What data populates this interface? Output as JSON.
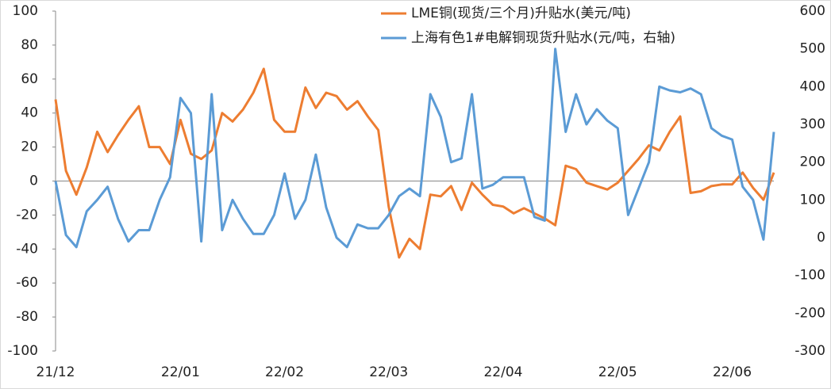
{
  "chart_data": {
    "type": "line",
    "categories": [
      "21/12",
      null,
      null,
      null,
      null,
      null,
      null,
      null,
      null,
      null,
      null,
      null,
      "22/01",
      null,
      null,
      null,
      null,
      null,
      null,
      null,
      null,
      null,
      "22/02",
      null,
      null,
      null,
      null,
      null,
      null,
      null,
      null,
      null,
      "22/03",
      null,
      null,
      null,
      null,
      null,
      null,
      null,
      null,
      null,
      null,
      "22/04",
      null,
      null,
      null,
      null,
      null,
      null,
      null,
      null,
      null,
      null,
      "22/05",
      null,
      null,
      null,
      null,
      null,
      null,
      null,
      null,
      null,
      null,
      "22/06",
      null,
      null,
      null,
      null
    ],
    "series": [
      {
        "name": "LME铜(现货/三个月)升贴水(美元/吨)",
        "color": "#ED7D31",
        "values": [
          48,
          6,
          -8,
          8,
          29,
          17,
          27,
          36,
          44,
          20,
          20,
          10,
          36,
          16,
          13,
          18,
          40,
          35,
          42,
          52,
          66,
          36,
          29,
          29,
          55,
          43,
          52,
          50,
          42,
          47,
          38,
          30,
          -15,
          -45,
          -34,
          -40,
          -8,
          -9,
          -3,
          -17,
          -1,
          -8,
          -14,
          -15,
          -19,
          -16,
          -19,
          -22,
          -26,
          9,
          7,
          -1,
          -3,
          -5,
          -1,
          6,
          13,
          21,
          18,
          29,
          38,
          -7,
          -6,
          -3,
          -2,
          -2,
          5,
          -4,
          -11,
          5
        ]
      },
      {
        "name": "上海有色1#电解铜现货升贴水(元/吨，右轴)",
        "color": "#5B9BD5",
        "axis": "y2",
        "values": [
          150,
          7,
          -25,
          70,
          100,
          135,
          50,
          -10,
          20,
          20,
          100,
          160,
          370,
          330,
          -10,
          380,
          20,
          100,
          50,
          10,
          10,
          60,
          170,
          50,
          100,
          220,
          80,
          0,
          -25,
          35,
          25,
          25,
          60,
          110,
          130,
          110,
          380,
          320,
          200,
          210,
          380,
          130,
          140,
          160,
          160,
          160,
          55,
          45,
          500,
          280,
          380,
          300,
          340,
          310,
          290,
          60,
          130,
          200,
          400,
          390,
          385,
          395,
          380,
          290,
          270,
          260,
          135,
          100,
          -5,
          280
        ]
      }
    ],
    "ylim": [
      -100,
      100
    ],
    "yticks": [
      -100,
      -80,
      -60,
      -40,
      -20,
      0,
      20,
      40,
      60,
      80,
      100
    ],
    "y2lim": [
      -300,
      600
    ],
    "y2ticks": [
      -300,
      -200,
      -100,
      0,
      100,
      200,
      300,
      400,
      500,
      600
    ],
    "legend": "top-right"
  }
}
